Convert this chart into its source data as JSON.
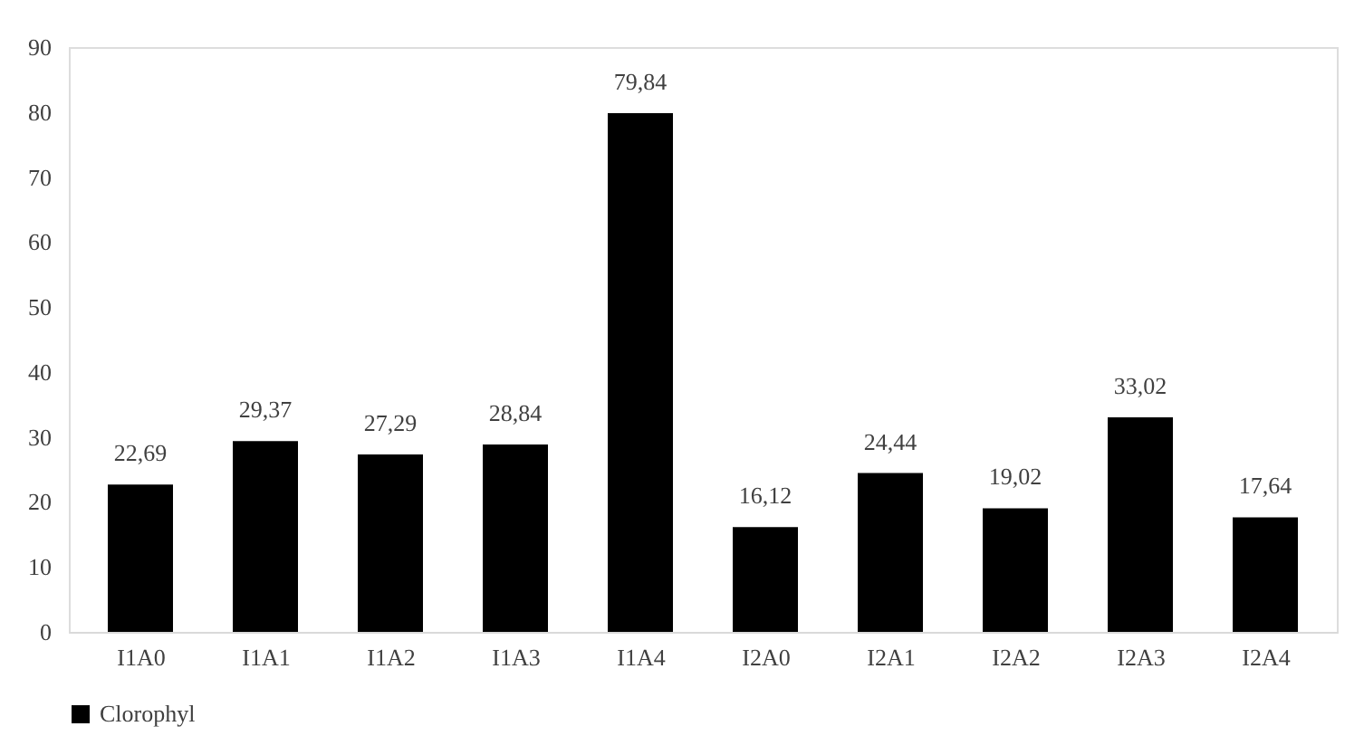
{
  "chart_data": {
    "type": "bar",
    "categories": [
      "I1A0",
      "I1A1",
      "I1A2",
      "I1A3",
      "I1A4",
      "I2A0",
      "I2A1",
      "I2A2",
      "I2A3",
      "I2A4"
    ],
    "series": [
      {
        "name": "Clorophyl",
        "color": "#000000",
        "values": [
          22.69,
          29.37,
          27.29,
          28.84,
          79.84,
          16.12,
          24.44,
          19.02,
          33.02,
          17.64
        ],
        "value_labels": [
          "22,69",
          "29,37",
          "27,29",
          "28,84",
          "79,84",
          "16,12",
          "24,44",
          "19,02",
          "33,02",
          "17,64"
        ]
      }
    ],
    "ylim": [
      0,
      90
    ],
    "yticks": [
      0,
      10,
      20,
      30,
      40,
      50,
      60,
      70,
      80,
      90
    ],
    "grid": false,
    "legend": "bottom"
  }
}
